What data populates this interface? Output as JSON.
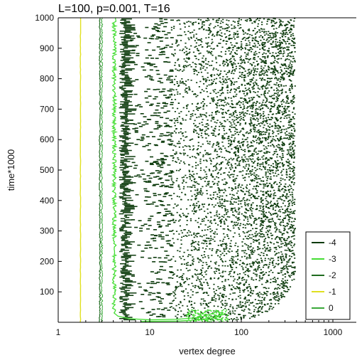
{
  "chart_data": {
    "type": "scatter",
    "title": "L=100, p=0.001, T=16",
    "xlabel": "vertex degree",
    "ylabel": "time*1000",
    "xscale": "log",
    "xlim": [
      1,
      2000
    ],
    "ylim": [
      0,
      1000
    ],
    "x_ticks": [
      1,
      10,
      100,
      1000
    ],
    "x_tick_labels": [
      "1",
      "10",
      "100",
      "1000"
    ],
    "y_ticks": [
      100,
      200,
      300,
      400,
      500,
      600,
      700,
      800,
      900,
      1000
    ],
    "y_tick_labels": [
      "100",
      "200",
      "300",
      "400",
      "500",
      "600",
      "700",
      "800",
      "900",
      "1000"
    ],
    "grid": false,
    "legend_position": "bottom-right",
    "series": [
      {
        "name": "-4",
        "color": "#0d3b0d",
        "x_range_start": [
          7,
          60
        ],
        "x_range_end": [
          15,
          380
        ]
      },
      {
        "name": "-3",
        "color": "#44dd33",
        "x_center": 4.1,
        "bump_peak": 55
      },
      {
        "name": "-2",
        "color": "#1f6b1f",
        "x_center": 2.85
      },
      {
        "name": "-1",
        "color": "#e0e020",
        "x_center": 1.75
      },
      {
        "name": "0",
        "color": "#3aa83a",
        "x_center": 3.0
      }
    ]
  }
}
